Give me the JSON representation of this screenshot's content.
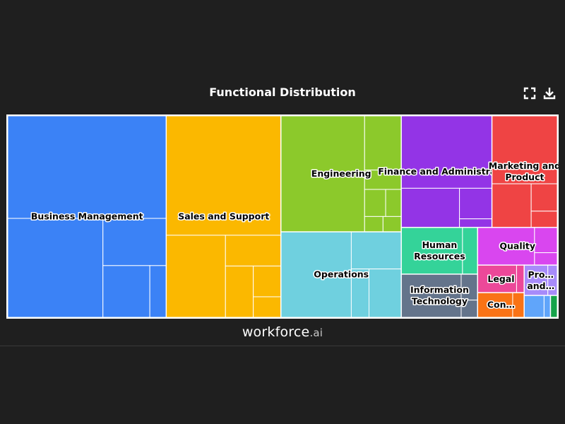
{
  "title": "Functional Distribution",
  "toolbar": {
    "fullscreen_icon": "expand-icon",
    "download_icon": "download-icon"
  },
  "brand": {
    "name": "workforce",
    "suffix": ".ai"
  },
  "chart_data": {
    "type": "treemap",
    "title": "Functional Distribution",
    "groups": [
      {
        "label": [
          "Business Management"
        ],
        "color": "#3b82f6",
        "value": 22.4,
        "children": [
          11.4,
          6.6,
          2.1,
          1.7,
          0.6
        ]
      },
      {
        "label": [
          "Sales and Support"
        ],
        "color": "#fbb800",
        "value": 16.2,
        "children": [
          9.6,
          3.4,
          1.2,
          1.0,
          0.6,
          0.4
        ]
      },
      {
        "label": [
          "Engineering"
        ],
        "color": "#8cc92b",
        "value": 9.8,
        "children": [
          6.8,
          1.4,
          0.5,
          0.4,
          0.3,
          0.2
        ]
      },
      {
        "label": [
          "Operations"
        ],
        "color": "#6fd0df",
        "value": 7.2,
        "children": [
          4.2,
          1.3,
          0.6
        ]
      },
      {
        "label": [
          "Finance and Administration"
        ],
        "color": "#9334e6",
        "value": 7.1,
        "children": [
          4.6,
          1.6,
          0.7
        ]
      },
      {
        "label": [
          "Marketing and",
          "Product"
        ],
        "color": "#ef4444",
        "value": 5.1,
        "children": [
          3.1,
          1.2,
          0.5
        ]
      },
      {
        "label": [
          "Human",
          "Resources"
        ],
        "color": "#34d399",
        "value": 2.5,
        "children": [
          2.0,
          0.5
        ]
      },
      {
        "label": [
          "Information",
          "Technology"
        ],
        "color": "#64748b",
        "value": 2.3,
        "children": [
          1.8,
          0.3,
          0.2
        ]
      },
      {
        "label": [
          "Quality"
        ],
        "color": "#d946ef",
        "value": 2.1,
        "children": [
          1.5,
          0.4
        ]
      },
      {
        "label": [
          "Legal"
        ],
        "color": "#ec4899",
        "value": 0.9,
        "children": [
          0.75
        ]
      },
      {
        "label": [
          "Con…"
        ],
        "color": "#f97316",
        "value": 0.8,
        "children": [
          0.6
        ]
      },
      {
        "label": [
          "Pro…",
          "and…"
        ],
        "color": "#a78bfa",
        "value": 0.7,
        "children": [
          0.5
        ]
      },
      {
        "label": [],
        "color": "#60a5fa",
        "value": 0.4,
        "children": [
          0.3
        ]
      },
      {
        "label": [],
        "color": "#16a34a",
        "value": 0.1,
        "children": [
          0.1
        ]
      }
    ]
  }
}
